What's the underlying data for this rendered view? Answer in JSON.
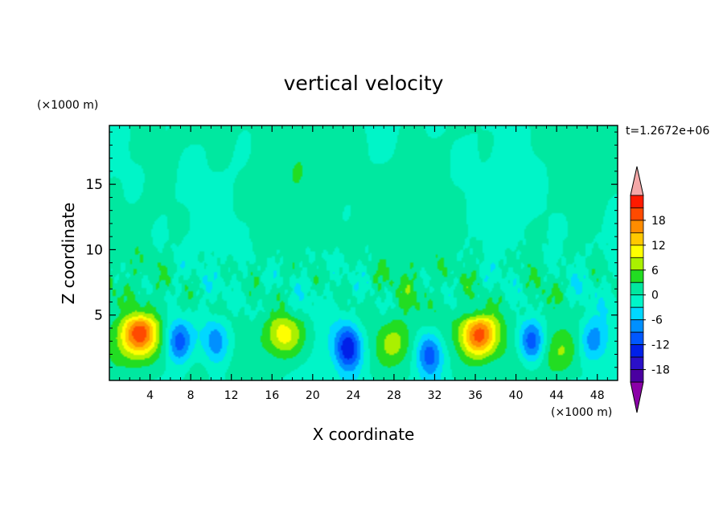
{
  "chart_data": {
    "type": "heatmap",
    "title": "vertical velocity",
    "xlabel": "X coordinate",
    "ylabel": "Z coordinate",
    "x_unit": "(×1000 m)",
    "y_unit": "(×1000 m)",
    "time_label": "t=1.2672e+06",
    "xlim": [
      0,
      50
    ],
    "ylim": [
      0,
      19.5
    ],
    "x_ticks": [
      4,
      8,
      12,
      16,
      20,
      24,
      28,
      32,
      36,
      40,
      44,
      48
    ],
    "y_ticks": [
      5,
      10,
      15
    ],
    "colorbar": {
      "levels": [
        -21,
        -18,
        -15,
        -12,
        -9,
        -6,
        -3,
        0,
        3,
        6,
        9,
        12,
        15,
        18,
        21
      ],
      "tick_values": [
        18,
        12,
        6,
        0,
        -6,
        -12,
        -18
      ],
      "colors": [
        "#8b00a8",
        "#4a00a0",
        "#2a10c8",
        "#0020e8",
        "#0058ff",
        "#0090ff",
        "#00d8ff",
        "#00f5c8",
        "#00e8a0",
        "#22dd22",
        "#aaf000",
        "#ffff00",
        "#ffc800",
        "#ff8c00",
        "#ff4a00",
        "#ff1a00",
        "#f4a8a8"
      ]
    },
    "features": [
      {
        "x": 3,
        "z": 3.5,
        "w": 19
      },
      {
        "x": 6.8,
        "z": 3.0,
        "w": -12
      },
      {
        "x": 10.5,
        "z": 3.0,
        "w": -9
      },
      {
        "x": 17.2,
        "z": 3.5,
        "w": 11
      },
      {
        "x": 23.5,
        "z": 2.5,
        "w": -14
      },
      {
        "x": 28,
        "z": 2.8,
        "w": 6
      },
      {
        "x": 31.5,
        "z": 2.0,
        "w": -12
      },
      {
        "x": 36.3,
        "z": 3.5,
        "w": 19
      },
      {
        "x": 41.5,
        "z": 3.0,
        "w": -13
      },
      {
        "x": 44.3,
        "z": 2.3,
        "w": 5
      },
      {
        "x": 47.5,
        "z": 3.0,
        "w": -7
      }
    ]
  }
}
